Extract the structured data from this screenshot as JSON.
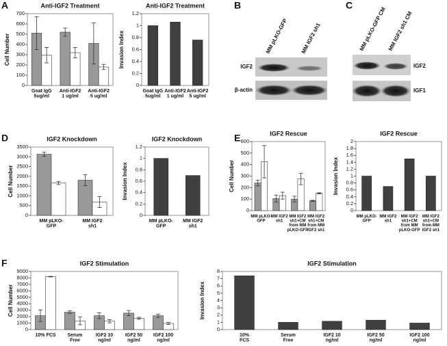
{
  "panels": [
    "A",
    "B",
    "C",
    "D",
    "E",
    "F"
  ],
  "blots": [
    {
      "lanes": [
        "MM pLKO-GFP",
        "MM IGF2 sh1"
      ],
      "rows": [
        "IGF2",
        "β-actin"
      ]
    },
    {
      "lanes": [
        "MM pLKO-GFP CM",
        "MM IGF2 sh1 CM"
      ],
      "rows": [
        "IGF2",
        "IGF1"
      ]
    }
  ],
  "chart_data": [
    {
      "type": "bar",
      "title": "Anti-IGF2 Treatment",
      "ylabel": "Cell Number",
      "categories": [
        "Goat IgG\n5ug/ml",
        "Anti-IGF2\n1 ug/ml",
        "Anti-IGF2\n5 ug/ml"
      ],
      "series": [
        {
          "color": "#999999",
          "values": [
            510,
            520,
            410
          ],
          "errors": [
            160,
            40,
            200
          ]
        },
        {
          "color": "#ffffff",
          "values": [
            295,
            320,
            180
          ],
          "errors": [
            75,
            50,
            25
          ]
        }
      ],
      "ylim": [
        0,
        700
      ],
      "yticks": [
        0,
        100,
        200,
        300,
        400,
        500,
        600,
        700
      ]
    },
    {
      "type": "bar",
      "title": "Anti-IGF2 Treatment",
      "ylabel": "Invasion Index",
      "categories": [
        "Goat IgG\n5ug/ml",
        "Anti-IGF2\n1 ug/ml",
        "Anti-IGF2\n5 ug/ml"
      ],
      "values": [
        1,
        1.06,
        0.76
      ],
      "color": "#404040",
      "ylim": [
        0,
        1.2
      ],
      "yticks": [
        0,
        0.2,
        0.4,
        0.6,
        0.8,
        1,
        1.2
      ]
    },
    {
      "type": "bar",
      "title": "IGF2 Knockdown",
      "ylabel": "Cell Number",
      "categories": [
        "MM pLKO-\nGFP",
        "MM IGF2\nsh1"
      ],
      "series": [
        {
          "color": "#999999",
          "values": [
            3130,
            1800
          ],
          "errors": [
            100,
            280
          ]
        },
        {
          "color": "#ffffff",
          "values": [
            1660,
            680
          ],
          "errors": [
            80,
            280
          ]
        }
      ],
      "ylim": [
        0,
        3500
      ],
      "yticks": [
        0,
        500,
        1000,
        1500,
        2000,
        2500,
        3000,
        3500
      ]
    },
    {
      "type": "bar",
      "title": "IGF2 Knockdown",
      "ylabel": "Invasion Index",
      "categories": [
        "MM pLKO-\nGFP",
        "MM IGF2\nsh1"
      ],
      "values": [
        1,
        0.7
      ],
      "color": "#404040",
      "ylim": [
        0,
        1.2
      ],
      "yticks": [
        0,
        0.2,
        0.4,
        0.6,
        0.8,
        1,
        1.2
      ]
    },
    {
      "type": "bar",
      "title": "IGF2 Rescue",
      "ylabel": "Cell Number",
      "categories": [
        "MM pLKO-\nGFP",
        "MM IGF2\nsh1",
        "MM IGF2\nsh1+CM\nfrom MM\npLKO-GFP",
        "MM IGF2\nsh1+CM\nfrom MM\nIGF2 sh1"
      ],
      "series": [
        {
          "color": "#999999",
          "values": [
            240,
            105,
            100,
            85
          ],
          "errors": [
            25,
            30,
            25,
            5
          ]
        },
        {
          "color": "#ffffff",
          "values": [
            425,
            130,
            275,
            150
          ],
          "errors": [
            140,
            30,
            50,
            5
          ]
        }
      ],
      "ylim": [
        0,
        600
      ],
      "yticks": [
        0,
        100,
        200,
        300,
        400,
        500,
        600
      ]
    },
    {
      "type": "bar",
      "title": "IGF2 Rescue",
      "ylabel": "Invasion Index",
      "categories": [
        "MM pLKO-\nGFP",
        "MM IGF2\nsh1",
        "MM IGF2\nsh1+CM\nfrom MM\npLKO-GFP",
        "MM IGF2\nsh1+CM\nfrom MM\nIGF2 sh1"
      ],
      "values": [
        1,
        0.7,
        1.5,
        1
      ],
      "color": "#404040",
      "ylim": [
        0,
        2
      ],
      "yticks": [
        0,
        0.2,
        0.4,
        0.6,
        0.8,
        1,
        1.2,
        1.4,
        1.6,
        1.8,
        2
      ]
    },
    {
      "type": "bar",
      "title": "IGF2 Stimulation",
      "ylabel": "Cell Number",
      "categories": [
        "10% FCS",
        "Serum\nFree",
        "IGF2 10\nng/ml",
        "IGF2 50\nng/ml",
        "IGF2 100\nng/ml"
      ],
      "series": [
        {
          "color": "#999999",
          "values": [
            2150,
            2700,
            2150,
            2550,
            2150
          ],
          "errors": [
            900,
            200,
            450,
            400,
            250
          ]
        },
        {
          "color": "#ffffff",
          "values": [
            8200,
            1350,
            1300,
            1750,
            950
          ],
          "errors": [
            50,
            600,
            250,
            150,
            150
          ]
        }
      ],
      "ylim": [
        0,
        9000
      ],
      "yticks": [
        0,
        1000,
        2000,
        3000,
        4000,
        5000,
        6000,
        7000,
        8000,
        9000
      ]
    },
    {
      "type": "bar",
      "title": "IGF2 Stimulation",
      "ylabel": "Invasion Index",
      "categories": [
        "10%\nFCS",
        "Serum\nFree",
        "IGF2 10\nng/ml",
        "IGF2 50\nng/ml",
        "IGF2 100\nng/ml"
      ],
      "values": [
        7.4,
        1,
        1.15,
        1.3,
        0.9
      ],
      "color": "#404040",
      "ylim": [
        0,
        8
      ],
      "yticks": [
        0,
        1,
        2,
        3,
        4,
        5,
        6,
        7,
        8
      ]
    }
  ]
}
